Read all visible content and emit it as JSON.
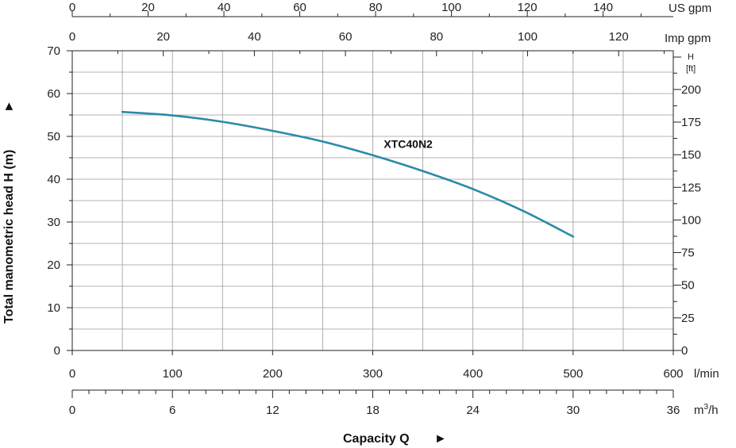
{
  "chart_data": {
    "type": "line",
    "series": [
      {
        "name": "XTC40N2",
        "x": [
          50,
          100,
          150,
          200,
          250,
          300,
          350,
          400,
          450,
          500
        ],
        "y": [
          55.7,
          54.9,
          53.4,
          51.3,
          48.8,
          45.6,
          41.9,
          37.7,
          32.6,
          26.6
        ]
      }
    ],
    "axes": {
      "left": {
        "label": "Total manometric head H (m)",
        "range": [
          0,
          70
        ],
        "ticks": [
          0,
          10,
          20,
          30,
          40,
          50,
          60,
          70
        ]
      },
      "right": {
        "label": "H",
        "unit": "[ft]",
        "range": [
          0,
          229.66
        ],
        "ticks": [
          0,
          25,
          50,
          75,
          100,
          125,
          150,
          175,
          200
        ]
      },
      "bottom_lmin": {
        "unit": "l/min",
        "range": [
          0,
          600
        ],
        "ticks": [
          0,
          100,
          200,
          300,
          400,
          500,
          600
        ]
      },
      "bottom_m3h": {
        "unit_main": "m",
        "unit_sup": "3",
        "unit_tail": "/h",
        "range": [
          0,
          36
        ],
        "ticks": [
          0,
          6,
          12,
          18,
          24,
          30,
          36
        ]
      },
      "top_usgpm": {
        "unit": "US gpm",
        "range": [
          0,
          158.5
        ],
        "ticks": [
          0,
          20,
          40,
          60,
          80,
          100,
          120,
          140
        ]
      },
      "top_impgpm": {
        "unit": "Imp gpm",
        "range": [
          0,
          132
        ],
        "ticks": [
          0,
          20,
          40,
          60,
          80,
          100,
          120
        ]
      }
    },
    "xlabel": "Capacity Q",
    "ylabel": "Total manometric head H (m)",
    "grid": true,
    "curve_color": "#2b8aa8",
    "arrow_glyph": "►",
    "arrow_up_glyph": "▲"
  }
}
